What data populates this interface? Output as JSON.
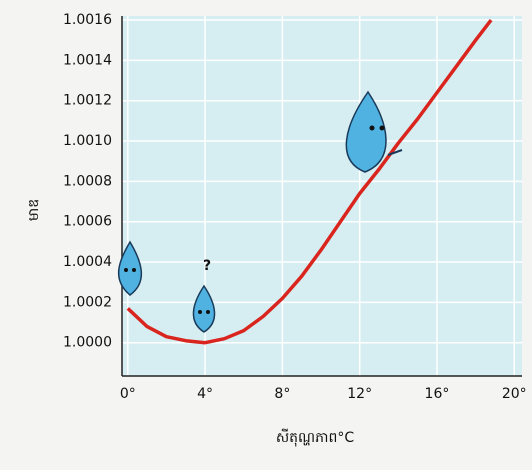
{
  "chart_data": {
    "type": "line",
    "x_label": "សីតុណ្ហភាព°C",
    "y_label": "មាឌ",
    "annotation": "?",
    "x": [
      0,
      1,
      2,
      3,
      4,
      5,
      6,
      7,
      8,
      9,
      10,
      11,
      12,
      13,
      14,
      15,
      16,
      17,
      18,
      18.8
    ],
    "series": [
      {
        "color": "#d9251d",
        "values": [
          1.00017,
          1.00008,
          1.00003,
          1.00001,
          1.0,
          1.00002,
          1.00006,
          1.00013,
          1.00022,
          1.00033,
          1.00046,
          1.0006,
          1.00074,
          1.00086,
          1.00099,
          1.00111,
          1.00124,
          1.00137,
          1.0015,
          1.0016
        ]
      }
    ],
    "xlim": [
      -0.3,
      20.4
    ],
    "ylim": [
      0.999835,
      1.00162
    ],
    "xticks": [
      {
        "value": 0,
        "label": "0°"
      },
      {
        "value": 4,
        "label": "4°"
      },
      {
        "value": 8,
        "label": "8°"
      },
      {
        "value": 12,
        "label": "12°"
      },
      {
        "value": 16,
        "label": "16°"
      },
      {
        "value": 20,
        "label": "20°"
      }
    ],
    "yticks": [
      {
        "value": 1.0,
        "label": "1.0000"
      },
      1.0002,
      1.0004,
      1.0006,
      1.0008,
      {
        "value": 1.001,
        "label": "1.0010"
      },
      1.0012,
      1.0014,
      1.0016
    ],
    "grid": true
  }
}
